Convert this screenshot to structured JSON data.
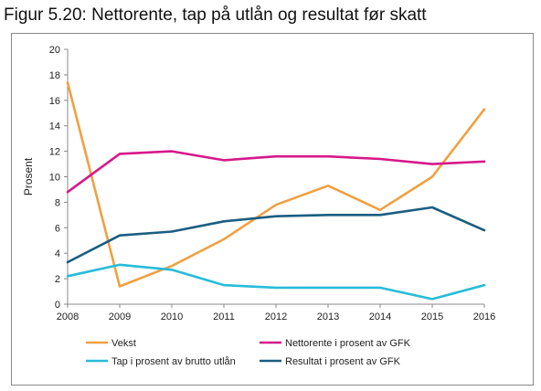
{
  "figure_title": "Figur 5.20: Nettorente, tap på utlån og resultat før skatt",
  "chart_data": {
    "type": "line",
    "x": [
      "2008",
      "2009",
      "2010",
      "2011",
      "2012",
      "2013",
      "2014",
      "2015",
      "2016"
    ],
    "ylabel": "Prosent",
    "xlabel": "",
    "ylim": [
      0,
      20
    ],
    "yticks": [
      0,
      2,
      4,
      6,
      8,
      10,
      12,
      14,
      16,
      18,
      20
    ],
    "grid": false,
    "legend_position": "bottom",
    "series": [
      {
        "name": "Vekst",
        "color": "#F0A040",
        "values": [
          17.4,
          1.4,
          3.0,
          5.1,
          7.8,
          9.3,
          7.4,
          10.0,
          15.3
        ]
      },
      {
        "name": "Nettorente i prosent av GFK",
        "color": "#D6188A",
        "values": [
          8.8,
          11.8,
          12.0,
          11.3,
          11.6,
          11.6,
          11.4,
          11.0,
          11.2
        ]
      },
      {
        "name": "Tap i prosent av brutto utlån",
        "color": "#27BCD8",
        "values": [
          2.2,
          3.1,
          2.7,
          1.5,
          1.3,
          1.3,
          1.3,
          0.4,
          1.5
        ]
      },
      {
        "name": "Resultat i prosent av GFK",
        "color": "#1A5E80",
        "values": [
          3.3,
          5.4,
          5.7,
          6.5,
          6.9,
          7.0,
          7.0,
          7.6,
          5.8
        ]
      }
    ]
  }
}
